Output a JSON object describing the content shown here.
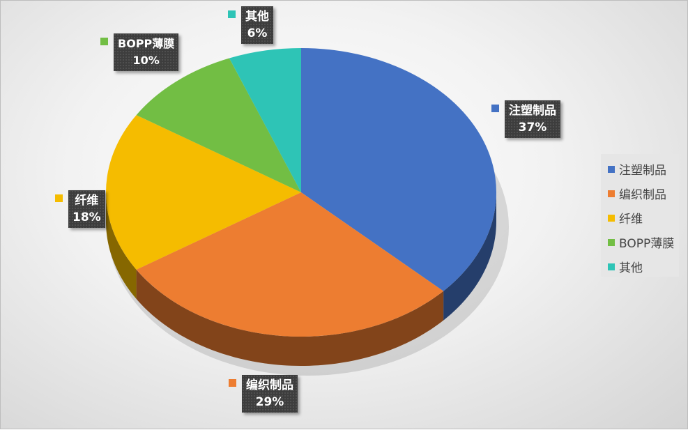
{
  "chart_data": {
    "type": "pie",
    "style": "3d",
    "categories": [
      "注塑制品",
      "编织制品",
      "纤维",
      "BOPP薄膜",
      "其他"
    ],
    "values": [
      37,
      29,
      18,
      10,
      6
    ],
    "labels": [
      "37%",
      "29%",
      "18%",
      "10%",
      "6%"
    ],
    "colors": [
      "#4472C4",
      "#ED7D31",
      "#F5BC00",
      "#72BE44",
      "#2EC4B6"
    ],
    "legend_position": "right"
  }
}
